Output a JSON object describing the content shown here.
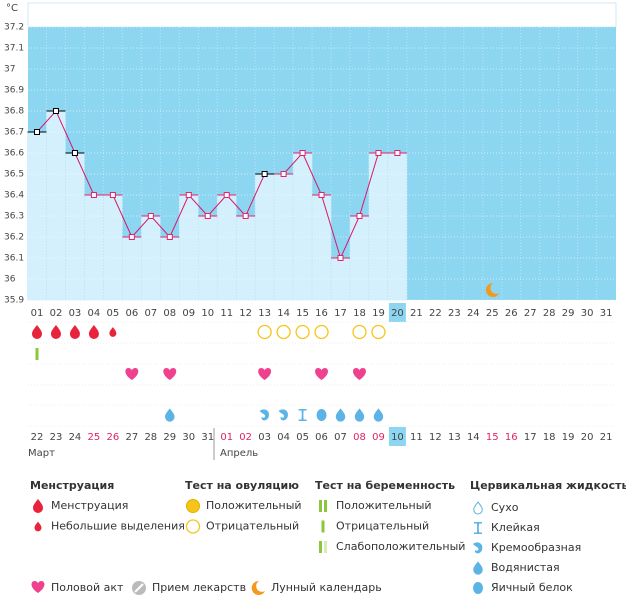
{
  "chart_data": {
    "type": "line",
    "y_label": "°C",
    "categories": [
      "01",
      "02",
      "03",
      "04",
      "05",
      "06",
      "07",
      "08",
      "09",
      "10",
      "11",
      "12",
      "13",
      "14",
      "15",
      "16",
      "17",
      "18",
      "19",
      "20",
      "21",
      "22",
      "23",
      "24",
      "25",
      "26",
      "27",
      "28",
      "29",
      "30",
      "31"
    ],
    "values": [
      36.7,
      36.8,
      36.6,
      36.4,
      36.4,
      36.2,
      36.3,
      36.2,
      36.4,
      36.3,
      36.4,
      36.3,
      36.5,
      36.5,
      36.6,
      36.4,
      36.1,
      36.3,
      36.6,
      36.6,
      null,
      null,
      null,
      null,
      null,
      null,
      null,
      null,
      null,
      null,
      null
    ],
    "point_colors": [
      "#000",
      "#000",
      "#000",
      "#e0246e",
      "#e0246e",
      "#e0246e",
      "#e0246e",
      "#e0246e",
      "#e0246e",
      "#e0246e",
      "#e0246e",
      "#e0246e",
      "#000",
      "#e0246e",
      "#e0246e",
      "#e0246e",
      "#e0246e",
      "#e0246e",
      "#e0246e",
      "#e0246e",
      null,
      null,
      null,
      null,
      null,
      null,
      null,
      null,
      null,
      null,
      null
    ],
    "color": "#d9166a",
    "bar_color": "#d3f0fc",
    "background": "#8dd6f2",
    "today": "20",
    "ylim": [
      35.9,
      37.2
    ],
    "yticks": [
      35.9,
      36,
      36.1,
      36.2,
      36.3,
      36.4,
      36.5,
      36.6,
      36.7,
      36.8,
      36.9,
      37,
      37.1,
      37.2
    ],
    "grid": true,
    "moon": "25"
  },
  "icon_rows": [
    [
      {
        "icon": "drop-red",
        "days": [
          "01",
          "02",
          "03",
          "04"
        ]
      },
      {
        "icon": "drop-red-small",
        "days": [
          "05"
        ]
      },
      {
        "icon": "circle-yellow",
        "days": [
          "13",
          "14",
          "15",
          "16",
          "18",
          "19"
        ]
      }
    ],
    [
      {
        "icon": "bar-green",
        "days": [
          "01"
        ]
      }
    ],
    [
      {
        "icon": "heart",
        "days": [
          "06",
          "08",
          "13",
          "16",
          "18"
        ]
      }
    ],
    [],
    [
      {
        "icon": "drop-blue",
        "days": [
          "08",
          "17",
          "18",
          "19"
        ]
      },
      {
        "icon": "creamy",
        "days": [
          "13",
          "14"
        ]
      },
      {
        "icon": "sticky",
        "days": [
          "15"
        ]
      },
      {
        "icon": "egg",
        "days": [
          "16"
        ]
      }
    ]
  ],
  "dates": [
    "22",
    "23",
    "24",
    "25",
    "26",
    "27",
    "28",
    "29",
    "30",
    "31",
    "01",
    "02",
    "03",
    "04",
    "05",
    "06",
    "07",
    "08",
    "09",
    "10",
    "11",
    "12",
    "13",
    "14",
    "15",
    "16",
    "17",
    "18",
    "19",
    "20",
    "21"
  ],
  "date_colors": [
    null,
    null,
    null,
    "#e0245e",
    "#e0245e",
    null,
    null,
    null,
    null,
    null,
    "#e0245e",
    "#e0245e",
    null,
    null,
    null,
    null,
    null,
    "#e0245e",
    "#e0245e",
    null,
    null,
    null,
    null,
    null,
    "#e0245e",
    "#e0245e",
    null,
    null,
    null,
    null,
    null
  ],
  "months": [
    "Март",
    "Апрель"
  ],
  "legend": [
    {
      "title": "Менструация",
      "items": [
        {
          "label": "Менструация",
          "icon": "drop-red"
        },
        {
          "label": "Небольшие выделения",
          "icon": "drop-red-small"
        }
      ]
    },
    {
      "title": "Тест на овуляцию",
      "items": [
        {
          "label": "Положительный",
          "icon": "circle-yellow-filled"
        },
        {
          "label": "Отрицательный",
          "icon": "circle-yellow"
        }
      ]
    },
    {
      "title": "Тест на беременность",
      "items": [
        {
          "label": "Положительный",
          "icon": "bar-green-2"
        },
        {
          "label": "Отрицательный",
          "icon": "bar-green"
        },
        {
          "label": "Слабоположительный",
          "icon": "bar-green-light"
        }
      ]
    },
    {
      "title": "Цервикальная жидкость",
      "items": [
        {
          "label": "Сухо",
          "icon": "dry"
        },
        {
          "label": "Клейкая",
          "icon": "sticky"
        },
        {
          "label": "Кремообразная",
          "icon": "creamy"
        },
        {
          "label": "Водянистая",
          "icon": "drop-blue"
        },
        {
          "label": "Яичный белок",
          "icon": "egg"
        }
      ]
    }
  ],
  "bottom_legend": [
    {
      "label": "Половой акт",
      "icon": "heart"
    },
    {
      "label": "Прием лекарств",
      "icon": "pill"
    },
    {
      "label": "Лунный календарь",
      "icon": "moon"
    }
  ]
}
